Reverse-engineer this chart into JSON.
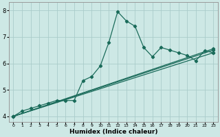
{
  "xlabel": "Humidex (Indice chaleur)",
  "ylabel": "",
  "bg_color": "#cde8e5",
  "grid_color": "#aaccca",
  "line_color": "#1a6b5a",
  "xlim": [
    -0.5,
    23.5
  ],
  "ylim": [
    3.8,
    8.3
  ],
  "xticks": [
    0,
    1,
    2,
    3,
    4,
    5,
    6,
    7,
    8,
    9,
    10,
    11,
    12,
    13,
    14,
    15,
    16,
    17,
    18,
    19,
    20,
    21,
    22,
    23
  ],
  "yticks": [
    4,
    5,
    6,
    7,
    8
  ],
  "series": [
    {
      "x": [
        0,
        1,
        2,
        3,
        4,
        5,
        6,
        7,
        8,
        9,
        10,
        11,
        12,
        13,
        14,
        15,
        16,
        17,
        18,
        19,
        20,
        21,
        22,
        23
      ],
      "y": [
        4.0,
        4.2,
        4.3,
        4.4,
        4.5,
        4.6,
        4.6,
        4.6,
        5.35,
        5.5,
        5.9,
        6.8,
        7.95,
        7.6,
        7.4,
        6.6,
        6.25,
        6.6,
        6.5,
        6.4,
        6.3,
        6.1,
        6.48,
        6.4
      ]
    },
    {
      "x": [
        0,
        23
      ],
      "y": [
        4.0,
        6.4
      ]
    },
    {
      "x": [
        0,
        23
      ],
      "y": [
        4.0,
        6.5
      ]
    },
    {
      "x": [
        0,
        23
      ],
      "y": [
        4.0,
        6.55
      ]
    }
  ]
}
